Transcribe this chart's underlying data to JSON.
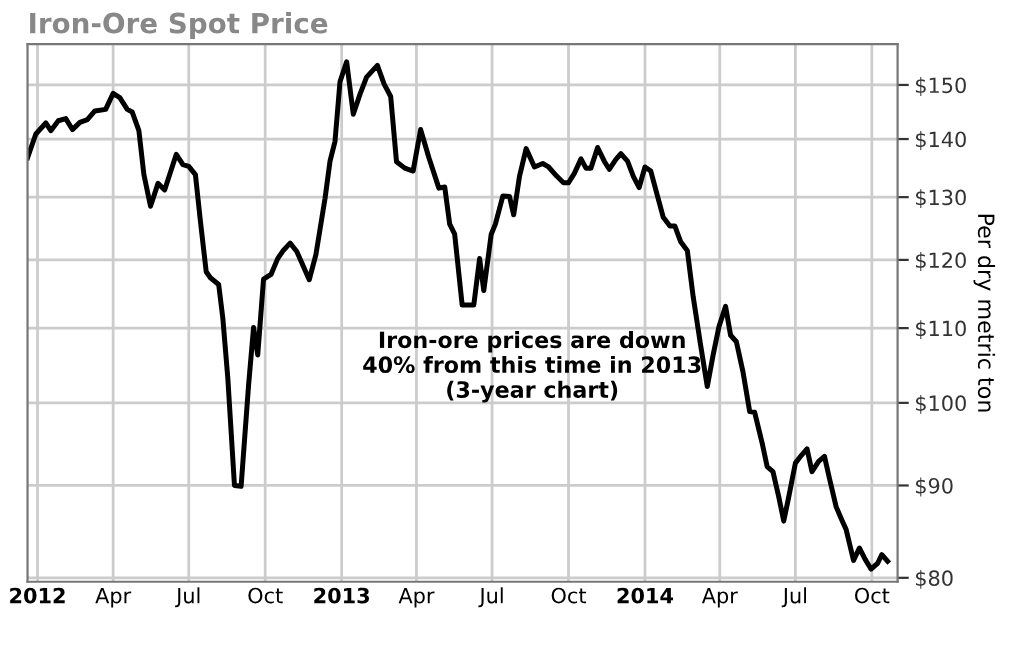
{
  "chart_data": {
    "type": "line",
    "title": "Iron-Ore Spot Price",
    "y2label": "Per dry metric ton",
    "annotations": [
      "Iron-ore prices are down\n40% from this time in 2013\n(3-year chart)"
    ],
    "x": [
      "2011-12-20",
      "2011-12-30",
      "2012-01-11",
      "2012-01-17",
      "2012-01-26",
      "2012-02-04",
      "2012-02-12",
      "2012-02-21",
      "2012-03-01",
      "2012-03-10",
      "2012-03-23",
      "2012-04-01",
      "2012-04-09",
      "2012-04-18",
      "2012-04-24",
      "2012-05-02",
      "2012-05-08",
      "2012-05-16",
      "2012-05-25",
      "2012-06-02",
      "2012-06-16",
      "2012-06-24",
      "2012-07-01",
      "2012-07-09",
      "2012-07-15",
      "2012-07-22",
      "2012-07-27",
      "2012-08-06",
      "2012-08-11",
      "2012-08-17",
      "2012-08-25",
      "2012-09-02",
      "2012-09-11",
      "2012-09-17",
      "2012-09-22",
      "2012-09-29",
      "2012-10-08",
      "2012-10-16",
      "2012-10-23",
      "2012-10-31",
      "2012-11-08",
      "2012-11-23",
      "2012-12-01",
      "2012-12-12",
      "2012-12-18",
      "2012-12-24",
      "2012-12-30",
      "2013-01-07",
      "2013-01-15",
      "2013-01-23",
      "2013-01-31",
      "2013-02-13",
      "2013-02-21",
      "2013-03-01",
      "2013-03-08",
      "2013-03-18",
      "2013-03-28",
      "2013-04-06",
      "2013-04-16",
      "2013-04-28",
      "2013-05-05",
      "2013-05-11",
      "2013-05-17",
      "2013-05-26",
      "2013-06-09",
      "2013-06-16",
      "2013-06-21",
      "2013-06-30",
      "2013-07-05",
      "2013-07-14",
      "2013-07-22",
      "2013-07-27",
      "2013-08-03",
      "2013-08-11",
      "2013-08-21",
      "2013-08-31",
      "2013-09-07",
      "2013-09-17",
      "2013-09-25",
      "2013-10-01",
      "2013-10-08",
      "2013-10-16",
      "2013-10-22",
      "2013-10-28",
      "2013-11-05",
      "2013-11-13",
      "2013-11-19",
      "2013-11-27",
      "2013-12-03",
      "2013-12-11",
      "2013-12-18",
      "2013-12-25",
      "2014-01-01",
      "2014-01-08",
      "2014-01-16",
      "2014-01-23",
      "2014-01-31",
      "2014-02-06",
      "2014-02-13",
      "2014-02-21",
      "2014-02-28",
      "2014-03-09",
      "2014-03-17",
      "2014-03-24",
      "2014-03-31",
      "2014-04-08",
      "2014-04-14",
      "2014-04-21",
      "2014-04-29",
      "2014-05-07",
      "2014-05-13",
      "2014-05-22",
      "2014-05-28",
      "2014-06-04",
      "2014-06-11",
      "2014-06-17",
      "2014-06-23",
      "2014-07-01",
      "2014-07-08",
      "2014-07-15",
      "2014-07-21",
      "2014-07-29",
      "2014-08-05",
      "2014-08-11",
      "2014-08-19",
      "2014-08-26",
      "2014-08-31",
      "2014-09-09",
      "2014-09-16",
      "2014-09-23",
      "2014-09-30",
      "2014-10-08",
      "2014-10-13",
      "2014-10-20"
    ],
    "series": [
      {
        "color": "#000000",
        "axis": "y2",
        "values": [
          136.7,
          140.9,
          142.9,
          141.5,
          143.3,
          143.7,
          141.7,
          143,
          143.5,
          145.1,
          145.4,
          148.4,
          147.6,
          145.4,
          144.9,
          141.5,
          133.8,
          128.5,
          132.3,
          131.2,
          137.3,
          135.5,
          135.2,
          133.8,
          126.1,
          118.2,
          117.3,
          116.3,
          111.4,
          103.2,
          90,
          89.9,
          102.3,
          110.1,
          106.3,
          117.1,
          117.8,
          120.2,
          121.5,
          122.6,
          121.3,
          117,
          120.8,
          129.8,
          136.1,
          139.6,
          150.6,
          154.5,
          144.5,
          148.2,
          151.5,
          153.8,
          150.2,
          147.8,
          136,
          134.9,
          134.4,
          141.7,
          136.7,
          131.5,
          131.7,
          125.6,
          124,
          113.3,
          113.3,
          120.2,
          115.4,
          124,
          125.6,
          130.2,
          130.1,
          127.1,
          133.5,
          138.3,
          135.1,
          135.7,
          135.1,
          133.5,
          132.4,
          132.4,
          134,
          136.5,
          134.9,
          134.9,
          138.5,
          136.1,
          134.7,
          136.4,
          137.4,
          136.1,
          133.5,
          131.6,
          135.1,
          134.4,
          130.2,
          126.7,
          125.3,
          125.3,
          122.8,
          121.4,
          114.5,
          107.6,
          102.1,
          106.3,
          110.2,
          113.1,
          109,
          108.1,
          104,
          98.9,
          98.8,
          95,
          92.2,
          91.6,
          88.7,
          86,
          88.7,
          92.6,
          93.5,
          94.3,
          91.6,
          92.8,
          93.4,
          90.8,
          87.6,
          86.1,
          85.1,
          81.8,
          83.1,
          81.9,
          80.9,
          81.5,
          82.4,
          81.7
        ]
      }
    ],
    "xlim": [
      "2011-12-20",
      "2014-11-01"
    ],
    "xticks": [
      {
        "value": "2012-01-01",
        "label": "2012"
      },
      {
        "value": "2012-04-01",
        "label": "Apr"
      },
      {
        "value": "2012-07-01",
        "label": "Jul"
      },
      {
        "value": "2012-10-01",
        "label": "Oct"
      },
      {
        "value": "2013-01-01",
        "label": "2013"
      },
      {
        "value": "2013-04-01",
        "label": "Apr"
      },
      {
        "value": "2013-07-01",
        "label": "Jul"
      },
      {
        "value": "2013-10-01",
        "label": "Oct"
      },
      {
        "value": "2014-01-01",
        "label": "2014"
      },
      {
        "value": "2014-04-01",
        "label": "Apr"
      },
      {
        "value": "2014-07-01",
        "label": "Jul"
      },
      {
        "value": "2014-10-01",
        "label": "Oct"
      }
    ],
    "log": "y2",
    "y2lim": [
      79.6,
      158
    ],
    "y2ticks": [
      {
        "value": 80,
        "label": "$80"
      },
      {
        "value": 90,
        "label": "$90"
      },
      {
        "value": 100,
        "label": "$100"
      },
      {
        "value": 110,
        "label": "$110"
      },
      {
        "value": 120,
        "label": "$120"
      },
      {
        "value": 130,
        "label": "$130"
      },
      {
        "value": 140,
        "label": "$140"
      },
      {
        "value": 150,
        "label": "$150"
      }
    ],
    "grid": true,
    "marker": "none",
    "line_style": "solid"
  }
}
